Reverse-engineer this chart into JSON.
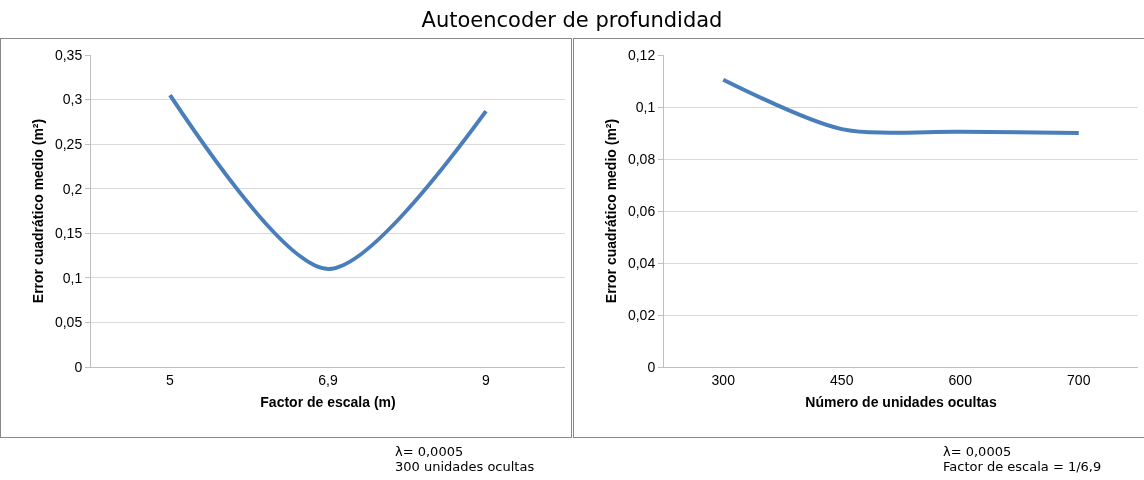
{
  "chart_data": [
    {
      "type": "line",
      "title": "Autoencoder de profundidad",
      "xlabel": "Factor de escala (m)",
      "ylabel": "Error cuadrático medio (m²)",
      "categories": [
        "5",
        "6,9",
        "9"
      ],
      "series": [
        {
          "color": "#4a7ebb",
          "values": [
            0.305,
            0.11,
            0.287
          ]
        }
      ],
      "ylim": [
        0,
        0.35
      ],
      "yticks": [
        0,
        {
          "value": 0.05,
          "label": "0,05"
        },
        {
          "value": 0.1,
          "label": "0,1"
        },
        {
          "value": 0.15,
          "label": "0,15"
        },
        {
          "value": 0.2,
          "label": "0,2"
        },
        {
          "value": 0.25,
          "label": "0,25"
        },
        {
          "value": 0.3,
          "label": "0,3"
        },
        {
          "value": 0.35,
          "label": "0,35"
        }
      ],
      "grid": "y",
      "marker": "none",
      "line_style": "solid",
      "annotations": [
        "λ= 0,0005",
        "300 unidades ocultas"
      ]
    },
    {
      "type": "line",
      "xlabel": "Número de unidades ocultas",
      "ylabel": "Error cuadrático medio (m²)",
      "categories": [
        "300",
        "450",
        "600",
        "700"
      ],
      "series": [
        {
          "color": "#4a7ebb",
          "values": [
            0.1105,
            0.0915,
            0.0905,
            0.09
          ]
        }
      ],
      "ylim": [
        0,
        0.12
      ],
      "yticks": [
        0,
        {
          "value": 0.02,
          "label": "0,02"
        },
        {
          "value": 0.04,
          "label": "0,04"
        },
        {
          "value": 0.06,
          "label": "0,06"
        },
        {
          "value": 0.08,
          "label": "0,08"
        },
        {
          "value": 0.1,
          "label": "0,1"
        },
        {
          "value": 0.12,
          "label": "0,12"
        }
      ],
      "grid": "y",
      "marker": "none",
      "line_style": "solid",
      "annotations": [
        "λ= 0,0005",
        "Factor de escala = 1/6,9"
      ]
    }
  ]
}
